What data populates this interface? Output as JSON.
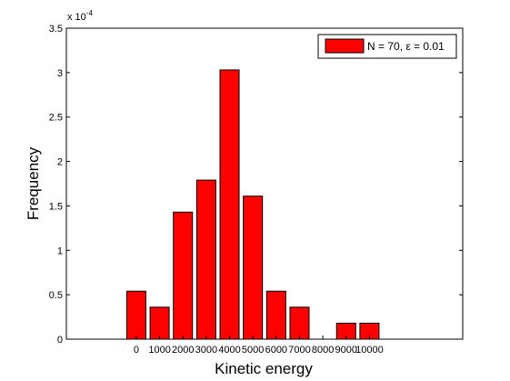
{
  "chart_data": {
    "type": "bar",
    "categories": [
      "0",
      "1000",
      "2000",
      "3000",
      "4000",
      "5000",
      "6000",
      "7000",
      "8000",
      "9000",
      "10000"
    ],
    "series": [
      {
        "name": "N = 70, ε = 0.01",
        "color": "#ff0000",
        "values": [
          5.4e-05,
          3.6e-05,
          0.000143,
          0.000179,
          0.000303,
          0.000161,
          5.4e-05,
          3.6e-05,
          0,
          1.8e-05,
          1.8e-05
        ]
      }
    ],
    "xlabel": "Kinetic energy",
    "ylabel": "Frequency",
    "ylim": [
      0,
      0.00035
    ],
    "yticks": [
      "0",
      "0.5",
      "1",
      "1.5",
      "2",
      "2.5",
      "3",
      "3.5"
    ],
    "y_exponent_label": "x 10",
    "y_exponent_power": "-4",
    "legend_position": "top-right",
    "grid": false
  }
}
